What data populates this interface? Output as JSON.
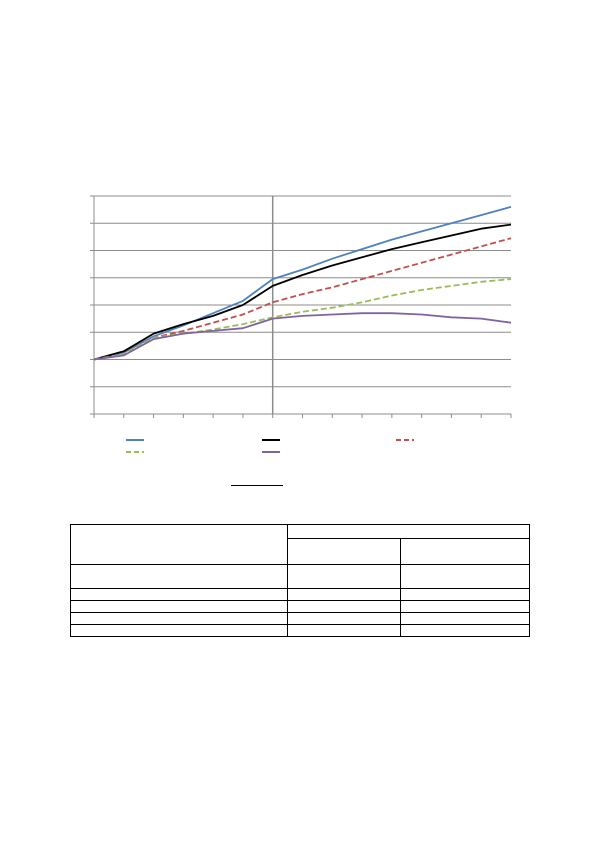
{
  "chart_data": {
    "type": "line",
    "x": [
      0,
      1,
      2,
      3,
      4,
      5,
      6,
      7,
      8,
      9,
      10,
      11,
      12,
      13,
      14
    ],
    "xlim": [
      0,
      14
    ],
    "ylim": [
      0,
      8
    ],
    "grid": true,
    "reference_line_x": 6,
    "legend_position": "bottom",
    "series": [
      {
        "color": "#4f81bd",
        "style": "solid",
        "values": [
          2.0,
          2.25,
          2.85,
          3.25,
          3.7,
          4.15,
          4.95,
          5.3,
          5.7,
          6.05,
          6.4,
          6.7,
          7.0,
          7.3,
          7.6
        ]
      },
      {
        "color": "#000000",
        "style": "solid",
        "values": [
          2.0,
          2.3,
          2.95,
          3.3,
          3.6,
          4.0,
          4.7,
          5.1,
          5.45,
          5.75,
          6.05,
          6.3,
          6.55,
          6.8,
          6.95
        ]
      },
      {
        "color": "#c0504d",
        "style": "dashed",
        "values": [
          2.0,
          2.2,
          2.8,
          3.05,
          3.35,
          3.65,
          4.1,
          4.4,
          4.65,
          4.95,
          5.25,
          5.55,
          5.85,
          6.15,
          6.45
        ]
      },
      {
        "color": "#9bbb59",
        "style": "dashed",
        "values": [
          2.0,
          2.2,
          2.8,
          2.95,
          3.1,
          3.3,
          3.55,
          3.75,
          3.9,
          4.1,
          4.35,
          4.55,
          4.7,
          4.85,
          4.95
        ]
      },
      {
        "color": "#8064a2",
        "style": "solid",
        "values": [
          2.0,
          2.15,
          2.75,
          2.95,
          3.05,
          3.15,
          3.5,
          3.6,
          3.65,
          3.7,
          3.7,
          3.65,
          3.55,
          3.5,
          3.35
        ]
      }
    ],
    "legend_swatches": [
      {
        "color": "#4f81bd",
        "style": "solid"
      },
      {
        "color": "#000000",
        "style": "solid"
      },
      {
        "color": "#c0504d",
        "style": "dashed"
      },
      {
        "color": "#9bbb59",
        "style": "dashed"
      },
      {
        "color": "#8064a2",
        "style": "solid"
      }
    ]
  },
  "table": {
    "rows": 7,
    "cols": 3
  }
}
